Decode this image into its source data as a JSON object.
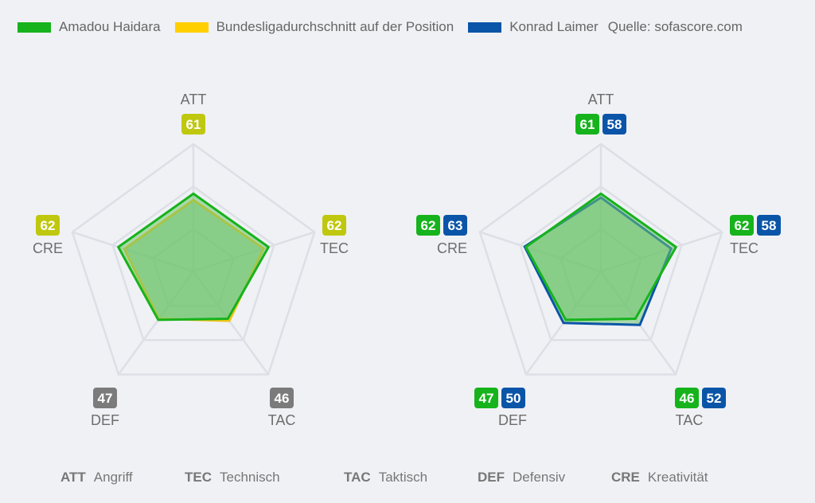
{
  "legend": {
    "items": [
      {
        "label": "Amadou Haidara",
        "color": "#16b31c"
      },
      {
        "label": "Bundesligadurchschnitt auf der Position",
        "color": "#ffcf00"
      },
      {
        "label": "Konrad Laimer",
        "color": "#0b55a8"
      }
    ],
    "source": "Quelle: sofascore.com"
  },
  "colors": {
    "haidara": "#16b31c",
    "average": "#f0c419",
    "laimer": "#0b55a8",
    "badge_yellowgreen": "#bfc80e",
    "badge_gray": "#7b7b7b",
    "grid": "#dcdfe5",
    "fill": "#6ec46e"
  },
  "chart_data": [
    {
      "type": "radar",
      "axes": [
        "ATT",
        "TEC",
        "TAC",
        "DEF",
        "CRE"
      ],
      "max": 100,
      "series": [
        {
          "name": "Amadou Haidara",
          "values": [
            61,
            62,
            46,
            47,
            62
          ]
        },
        {
          "name": "Bundesligadurchschnitt auf der Position",
          "values": [
            56,
            58,
            48,
            46,
            57
          ]
        }
      ],
      "badges": [
        [
          {
            "value": "61",
            "style": "badge_yellowgreen"
          }
        ],
        [
          {
            "value": "62",
            "style": "badge_yellowgreen"
          }
        ],
        [
          {
            "value": "46",
            "style": "badge_gray"
          }
        ],
        [
          {
            "value": "47",
            "style": "badge_gray"
          }
        ],
        [
          {
            "value": "62",
            "style": "badge_yellowgreen"
          }
        ]
      ]
    },
    {
      "type": "radar",
      "axes": [
        "ATT",
        "TEC",
        "TAC",
        "DEF",
        "CRE"
      ],
      "max": 100,
      "series": [
        {
          "name": "Konrad Laimer",
          "values": [
            58,
            58,
            52,
            50,
            63
          ]
        },
        {
          "name": "Amadou Haidara",
          "values": [
            61,
            62,
            46,
            47,
            62
          ]
        }
      ],
      "badges": [
        [
          {
            "value": "61",
            "style": "haidara"
          },
          {
            "value": "58",
            "style": "laimer"
          }
        ],
        [
          {
            "value": "62",
            "style": "haidara"
          },
          {
            "value": "58",
            "style": "laimer"
          }
        ],
        [
          {
            "value": "46",
            "style": "haidara"
          },
          {
            "value": "52",
            "style": "laimer"
          }
        ],
        [
          {
            "value": "47",
            "style": "haidara"
          },
          {
            "value": "50",
            "style": "laimer"
          }
        ],
        [
          {
            "value": "62",
            "style": "haidara"
          },
          {
            "value": "63",
            "style": "laimer"
          }
        ]
      ]
    }
  ],
  "abbreviations": [
    {
      "code": "ATT",
      "label": "Angriff"
    },
    {
      "code": "TEC",
      "label": "Technisch"
    },
    {
      "code": "TAC",
      "label": "Taktisch"
    },
    {
      "code": "DEF",
      "label": "Defensiv"
    },
    {
      "code": "CRE",
      "label": "Kreativität"
    }
  ]
}
